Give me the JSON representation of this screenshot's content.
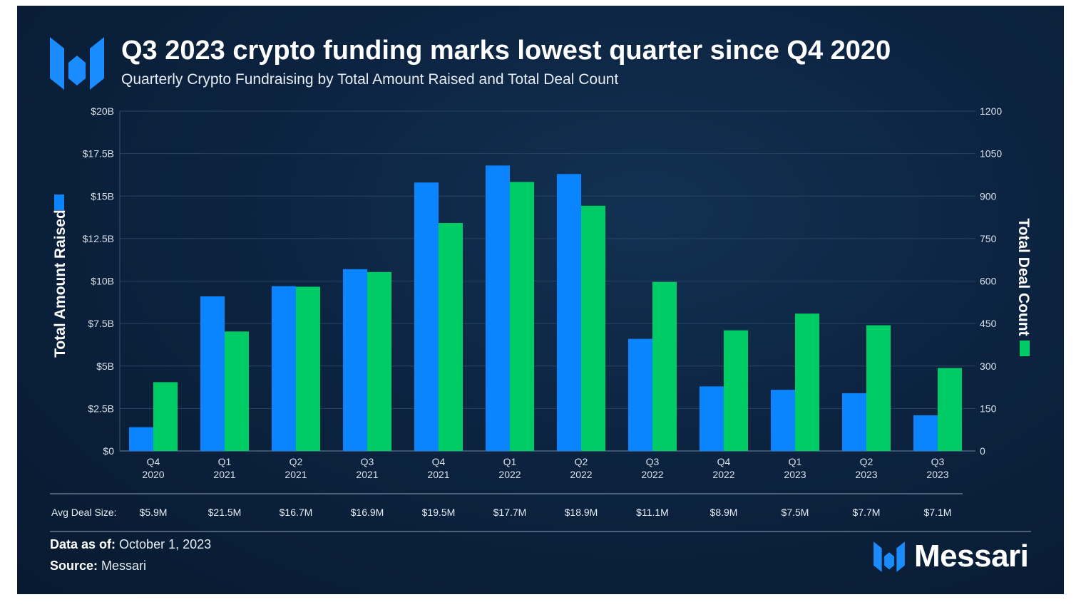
{
  "title": "Q3 2023 crypto funding marks lowest quarter since Q4 2020",
  "subtitle": "Quarterly Crypto Fundraising by Total Amount Raised and Total Deal Count",
  "colors": {
    "amount": "#0a84ff",
    "deals": "#00cc66",
    "background": "#0c2340",
    "grid": "#2a4563"
  },
  "chart_data": {
    "type": "bar",
    "categories": [
      [
        "Q4",
        "2020"
      ],
      [
        "Q1",
        "2021"
      ],
      [
        "Q2",
        "2021"
      ],
      [
        "Q3",
        "2021"
      ],
      [
        "Q4",
        "2021"
      ],
      [
        "Q1",
        "2022"
      ],
      [
        "Q2",
        "2022"
      ],
      [
        "Q3",
        "2022"
      ],
      [
        "Q4",
        "2022"
      ],
      [
        "Q1",
        "2023"
      ],
      [
        "Q2",
        "2023"
      ],
      [
        "Q3",
        "2023"
      ]
    ],
    "series": [
      {
        "name": "Total Amount Raised",
        "axis": "left",
        "unit": "$B",
        "values": [
          1.4,
          9.1,
          9.7,
          10.7,
          15.8,
          16.8,
          16.3,
          6.6,
          3.8,
          3.6,
          3.4,
          2.1
        ]
      },
      {
        "name": "Total Deal Count",
        "axis": "right",
        "values": [
          243,
          422,
          580,
          632,
          805,
          950,
          866,
          597,
          426,
          485,
          444,
          293
        ]
      }
    ],
    "y_left": {
      "label": "Total Amount Raised",
      "range": [
        0,
        20
      ],
      "ticks": [
        "$0",
        "$2.5B",
        "$5B",
        "$7.5B",
        "$10B",
        "$12.5B",
        "$15B",
        "$17.5B",
        "$20B"
      ]
    },
    "y_right": {
      "label": "Total Deal Count",
      "range": [
        0,
        1200
      ],
      "ticks": [
        "0",
        "150",
        "300",
        "450",
        "600",
        "750",
        "900",
        "1050",
        "1200"
      ]
    },
    "avg_deal_size_label": "Avg Deal Size:",
    "avg_deal_size": [
      "$5.9M",
      "$21.5M",
      "$16.7M",
      "$16.9M",
      "$19.5M",
      "$17.7M",
      "$18.9M",
      "$11.1M",
      "$8.9M",
      "$7.5M",
      "$7.7M",
      "$7.1M"
    ]
  },
  "footer": {
    "data_as_of_label": "Data as of:",
    "data_as_of_value": "October 1, 2023",
    "source_label": "Source:",
    "source_value": "Messari"
  },
  "brand": "Messari"
}
